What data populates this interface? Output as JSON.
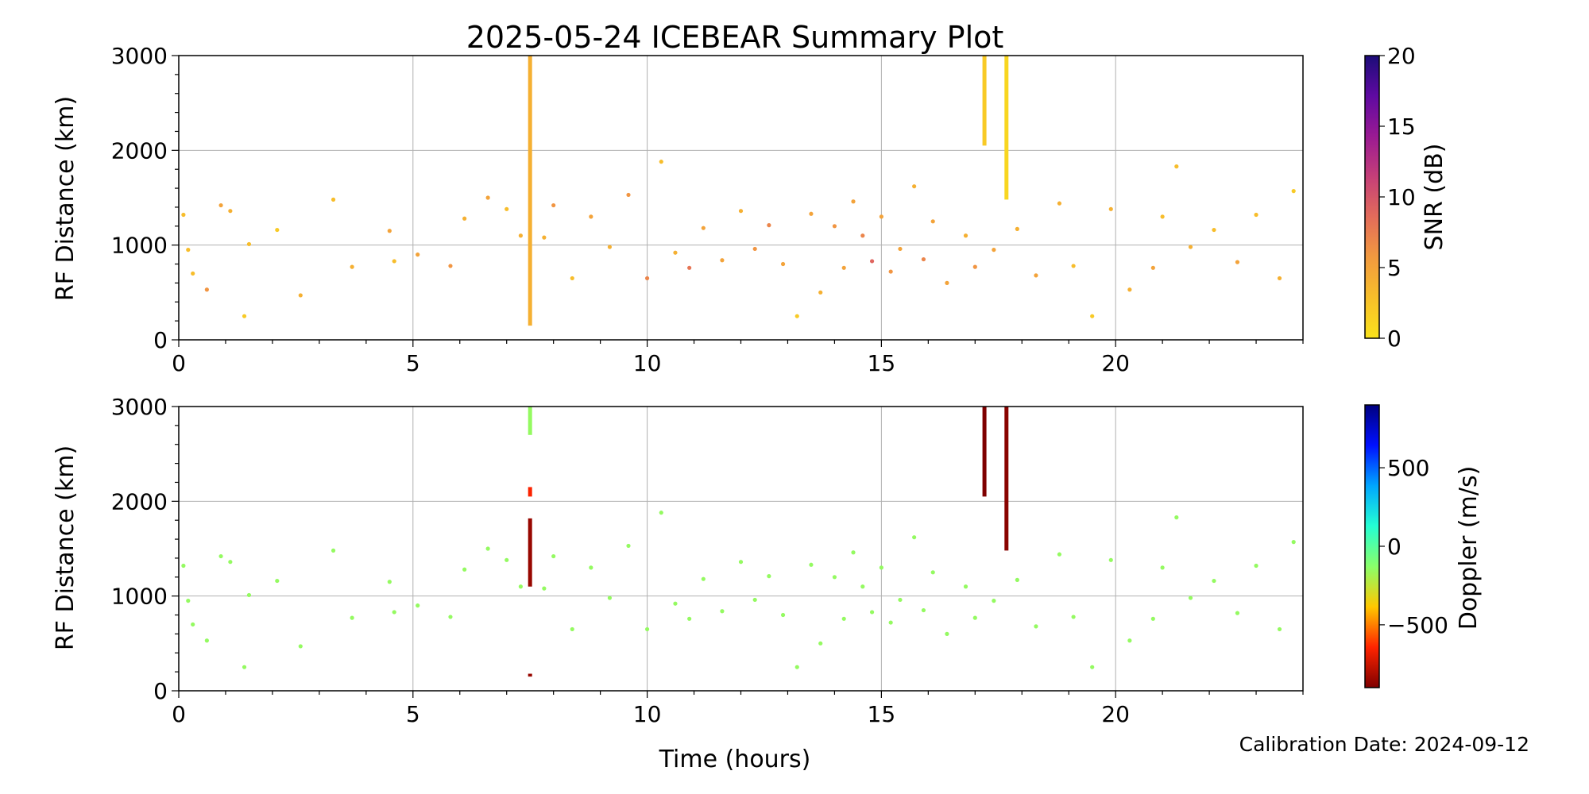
{
  "figure": {
    "title": "2025-05-24 ICEBEAR Summary Plot",
    "calibration": "Calibration Date: 2024-09-12",
    "xlabel": "Time (hours)"
  },
  "colors": {
    "snr_colormap": [
      "#f9e21c",
      "#f7bf2a",
      "#f29a3f",
      "#e36c5a",
      "#c53f78",
      "#9a1a93",
      "#5f0aa2",
      "#1c0c78"
    ],
    "doppler_colormap": [
      "#7f0000",
      "#ff2400",
      "#ffc800",
      "#8aff6a",
      "#24ffd3",
      "#00a6ff",
      "#0010ff",
      "#00007f"
    ],
    "grid": "#b0b0b0"
  },
  "chart_data": [
    {
      "type": "scatter",
      "panel": "top",
      "ylabel": "RF Distance (km)",
      "colorbar_label": "SNR (dB)",
      "xlim": [
        0,
        24
      ],
      "ylim": [
        0,
        3000
      ],
      "x_ticks": [
        0,
        5,
        10,
        15,
        20
      ],
      "y_ticks": [
        0,
        1000,
        2000,
        3000
      ],
      "colorbar_range": [
        0,
        20
      ],
      "colorbar_ticks": [
        0,
        5,
        10,
        15,
        20
      ],
      "grid": true,
      "series": [
        {
          "points": [
            [
              0.1,
              1320,
              3
            ],
            [
              0.2,
              950,
              3
            ],
            [
              0.3,
              700,
              3
            ],
            [
              0.6,
              530,
              6
            ],
            [
              0.9,
              1420,
              5
            ],
            [
              1.1,
              1360,
              4
            ],
            [
              1.4,
              250,
              2
            ],
            [
              1.5,
              1010,
              3
            ],
            [
              2.1,
              1160,
              2
            ],
            [
              2.6,
              470,
              4
            ],
            [
              3.3,
              1480,
              3
            ],
            [
              3.7,
              770,
              4
            ],
            [
              4.5,
              1150,
              5
            ],
            [
              4.6,
              830,
              3
            ],
            [
              5.1,
              900,
              5
            ],
            [
              5.8,
              780,
              6
            ],
            [
              6.1,
              1280,
              4
            ],
            [
              6.6,
              1500,
              5
            ],
            [
              7.0,
              1380,
              3
            ],
            [
              7.3,
              1100,
              4
            ],
            [
              7.8,
              1080,
              4
            ],
            [
              8.0,
              1420,
              6
            ],
            [
              8.4,
              650,
              3
            ],
            [
              8.8,
              1300,
              5
            ],
            [
              9.2,
              980,
              4
            ],
            [
              9.6,
              1530,
              6
            ],
            [
              10.0,
              650,
              7
            ],
            [
              10.3,
              1880,
              3
            ],
            [
              10.6,
              920,
              4
            ],
            [
              10.9,
              760,
              8
            ],
            [
              11.2,
              1180,
              5
            ],
            [
              11.6,
              840,
              5
            ],
            [
              12.0,
              1360,
              4
            ],
            [
              12.3,
              960,
              6
            ],
            [
              12.6,
              1210,
              7
            ],
            [
              12.9,
              800,
              5
            ],
            [
              13.2,
              250,
              2
            ],
            [
              13.5,
              1330,
              5
            ],
            [
              13.7,
              500,
              4
            ],
            [
              14.0,
              1200,
              6
            ],
            [
              14.2,
              760,
              5
            ],
            [
              14.4,
              1460,
              5
            ],
            [
              14.6,
              1100,
              7
            ],
            [
              14.8,
              830,
              9
            ],
            [
              15.0,
              1300,
              5
            ],
            [
              15.2,
              720,
              6
            ],
            [
              15.4,
              960,
              5
            ],
            [
              15.7,
              1620,
              4
            ],
            [
              15.9,
              850,
              7
            ],
            [
              16.1,
              1250,
              5
            ],
            [
              16.4,
              600,
              5
            ],
            [
              16.8,
              1100,
              4
            ],
            [
              17.0,
              770,
              6
            ],
            [
              17.4,
              950,
              5
            ],
            [
              17.9,
              1170,
              4
            ],
            [
              18.3,
              680,
              5
            ],
            [
              18.8,
              1440,
              4
            ],
            [
              19.1,
              780,
              3
            ],
            [
              19.5,
              250,
              2
            ],
            [
              19.9,
              1380,
              4
            ],
            [
              20.3,
              530,
              4
            ],
            [
              20.8,
              760,
              5
            ],
            [
              21.0,
              1300,
              3
            ],
            [
              21.3,
              1830,
              3
            ],
            [
              21.6,
              980,
              4
            ],
            [
              22.1,
              1160,
              3
            ],
            [
              22.6,
              820,
              5
            ],
            [
              23.0,
              1320,
              3
            ],
            [
              23.5,
              650,
              4
            ],
            [
              23.8,
              1570,
              2
            ]
          ],
          "streaks": [
            {
              "x": 7.5,
              "y_from": 150,
              "y_to": 3000,
              "value": 4
            },
            {
              "x": 17.2,
              "y_from": 2050,
              "y_to": 3000,
              "value": 2
            },
            {
              "x": 17.67,
              "y_from": 1480,
              "y_to": 3000,
              "value": 1
            }
          ]
        }
      ]
    },
    {
      "type": "scatter",
      "panel": "bottom",
      "ylabel": "RF Distance (km)",
      "colorbar_label": "Doppler (m/s)",
      "xlim": [
        0,
        24
      ],
      "ylim": [
        0,
        3000
      ],
      "x_ticks": [
        0,
        5,
        10,
        15,
        20
      ],
      "y_ticks": [
        0,
        1000,
        2000,
        3000
      ],
      "colorbar_range": [
        -900,
        900
      ],
      "colorbar_ticks": [
        -500,
        0,
        500
      ],
      "colorbar_tick_labels": [
        "−500",
        "0",
        "500"
      ],
      "grid": true,
      "series": [
        {
          "points": [
            [
              0.1,
              1320,
              -150
            ],
            [
              0.2,
              950,
              -150
            ],
            [
              0.3,
              700,
              -150
            ],
            [
              0.6,
              530,
              -150
            ],
            [
              0.9,
              1420,
              -150
            ],
            [
              1.1,
              1360,
              -150
            ],
            [
              1.4,
              250,
              -150
            ],
            [
              1.5,
              1010,
              -150
            ],
            [
              2.1,
              1160,
              -150
            ],
            [
              2.6,
              470,
              -150
            ],
            [
              3.3,
              1480,
              -150
            ],
            [
              3.7,
              770,
              -150
            ],
            [
              4.5,
              1150,
              -150
            ],
            [
              4.6,
              830,
              -150
            ],
            [
              5.1,
              900,
              -150
            ],
            [
              5.8,
              780,
              -150
            ],
            [
              6.1,
              1280,
              -150
            ],
            [
              6.6,
              1500,
              -150
            ],
            [
              7.0,
              1380,
              -150
            ],
            [
              7.3,
              1100,
              -150
            ],
            [
              7.8,
              1080,
              -150
            ],
            [
              8.0,
              1420,
              -150
            ],
            [
              8.4,
              650,
              -150
            ],
            [
              8.8,
              1300,
              -150
            ],
            [
              9.2,
              980,
              -150
            ],
            [
              9.6,
              1530,
              -150
            ],
            [
              10.0,
              650,
              -150
            ],
            [
              10.3,
              1880,
              -150
            ],
            [
              10.6,
              920,
              -150
            ],
            [
              10.9,
              760,
              -150
            ],
            [
              11.2,
              1180,
              -150
            ],
            [
              11.6,
              840,
              -150
            ],
            [
              12.0,
              1360,
              -150
            ],
            [
              12.3,
              960,
              -150
            ],
            [
              12.6,
              1210,
              -150
            ],
            [
              12.9,
              800,
              -150
            ],
            [
              13.2,
              250,
              -150
            ],
            [
              13.5,
              1330,
              -150
            ],
            [
              13.7,
              500,
              -150
            ],
            [
              14.0,
              1200,
              -150
            ],
            [
              14.2,
              760,
              -150
            ],
            [
              14.4,
              1460,
              -150
            ],
            [
              14.6,
              1100,
              -150
            ],
            [
              14.8,
              830,
              -150
            ],
            [
              15.0,
              1300,
              -150
            ],
            [
              15.2,
              720,
              -150
            ],
            [
              15.4,
              960,
              -150
            ],
            [
              15.7,
              1620,
              -150
            ],
            [
              15.9,
              850,
              -150
            ],
            [
              16.1,
              1250,
              -150
            ],
            [
              16.4,
              600,
              -150
            ],
            [
              16.8,
              1100,
              -150
            ],
            [
              17.0,
              770,
              -150
            ],
            [
              17.4,
              950,
              -150
            ],
            [
              17.9,
              1170,
              -150
            ],
            [
              18.3,
              680,
              -150
            ],
            [
              18.8,
              1440,
              -150
            ],
            [
              19.1,
              780,
              -150
            ],
            [
              19.5,
              250,
              -150
            ],
            [
              19.9,
              1380,
              -150
            ],
            [
              20.3,
              530,
              -150
            ],
            [
              20.8,
              760,
              -150
            ],
            [
              21.0,
              1300,
              -150
            ],
            [
              21.3,
              1830,
              -150
            ],
            [
              21.6,
              980,
              -150
            ],
            [
              22.1,
              1160,
              -150
            ],
            [
              22.6,
              820,
              -150
            ],
            [
              23.0,
              1320,
              -150
            ],
            [
              23.5,
              650,
              -150
            ],
            [
              23.8,
              1570,
              -150
            ]
          ],
          "streaks": [
            {
              "x": 7.5,
              "y_from": 2700,
              "y_to": 3000,
              "value": -150
            },
            {
              "x": 7.5,
              "y_from": 2050,
              "y_to": 2150,
              "value": -650
            },
            {
              "x": 7.5,
              "y_from": 1100,
              "y_to": 1820,
              "value": -850
            },
            {
              "x": 7.5,
              "y_from": 150,
              "y_to": 180,
              "value": -850
            },
            {
              "x": 17.2,
              "y_from": 2050,
              "y_to": 3000,
              "value": -900
            },
            {
              "x": 17.67,
              "y_from": 1480,
              "y_to": 3000,
              "value": -880
            }
          ]
        }
      ]
    }
  ]
}
